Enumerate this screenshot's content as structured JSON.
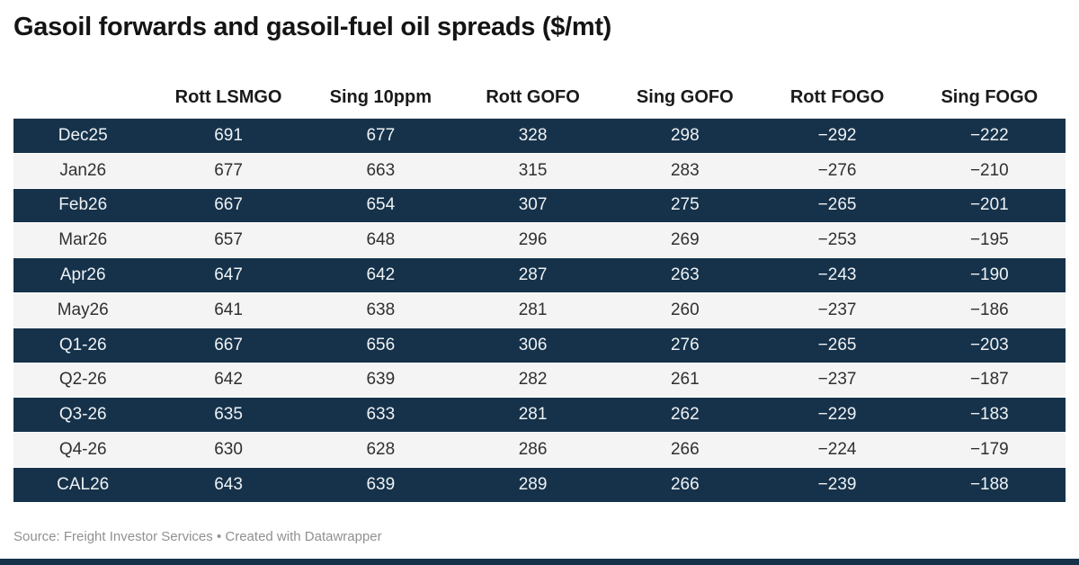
{
  "title": "Gasoil forwards and gasoil-fuel oil spreads ($/mt)",
  "table": {
    "columns": [
      "",
      "Rott LSMGO",
      "Sing 10ppm",
      "Rott GOFO",
      "Sing GOFO",
      "Rott FOGO",
      "Sing FOGO"
    ],
    "rows": [
      {
        "label": "Dec25",
        "values": [
          "691",
          "677",
          "328",
          "298",
          "−292",
          "−222"
        ]
      },
      {
        "label": "Jan26",
        "values": [
          "677",
          "663",
          "315",
          "283",
          "−276",
          "−210"
        ]
      },
      {
        "label": "Feb26",
        "values": [
          "667",
          "654",
          "307",
          "275",
          "−265",
          "−201"
        ]
      },
      {
        "label": "Mar26",
        "values": [
          "657",
          "648",
          "296",
          "269",
          "−253",
          "−195"
        ]
      },
      {
        "label": "Apr26",
        "values": [
          "647",
          "642",
          "287",
          "263",
          "−243",
          "−190"
        ]
      },
      {
        "label": "May26",
        "values": [
          "641",
          "638",
          "281",
          "260",
          "−237",
          "−186"
        ]
      },
      {
        "label": "Q1-26",
        "values": [
          "667",
          "656",
          "306",
          "276",
          "−265",
          "−203"
        ]
      },
      {
        "label": "Q2-26",
        "values": [
          "642",
          "639",
          "282",
          "261",
          "−237",
          "−187"
        ]
      },
      {
        "label": "Q3-26",
        "values": [
          "635",
          "633",
          "281",
          "262",
          "−229",
          "−183"
        ]
      },
      {
        "label": "Q4-26",
        "values": [
          "630",
          "628",
          "286",
          "266",
          "−224",
          "−179"
        ]
      },
      {
        "label": "CAL26",
        "values": [
          "643",
          "639",
          "289",
          "266",
          "−239",
          "−188"
        ]
      }
    ]
  },
  "footer": {
    "source_label": "Source:",
    "source_value": "Freight Investor Services",
    "separator": "•",
    "credit": "Created with Datawrapper"
  },
  "colors": {
    "navy": "#16324a",
    "light_row": "#f4f4f4",
    "page_bg": "#ffffff",
    "text_dark": "#303030",
    "text_light": "#eef2f5",
    "header_text": "#1a1a1a",
    "title_text": "#141414",
    "footer_text": "#919191"
  },
  "chart_data": {
    "type": "table",
    "title": "Gasoil forwards and gasoil-fuel oil spreads ($/mt)",
    "categories": [
      "Dec25",
      "Jan26",
      "Feb26",
      "Mar26",
      "Apr26",
      "May26",
      "Q1-26",
      "Q2-26",
      "Q3-26",
      "Q4-26",
      "CAL26"
    ],
    "series": [
      {
        "name": "Rott LSMGO",
        "values": [
          691,
          677,
          667,
          657,
          647,
          641,
          667,
          642,
          635,
          630,
          643
        ]
      },
      {
        "name": "Sing 10ppm",
        "values": [
          677,
          663,
          654,
          648,
          642,
          638,
          656,
          639,
          633,
          628,
          639
        ]
      },
      {
        "name": "Rott GOFO",
        "values": [
          328,
          315,
          307,
          296,
          287,
          281,
          306,
          282,
          281,
          286,
          289
        ]
      },
      {
        "name": "Sing GOFO",
        "values": [
          298,
          283,
          275,
          269,
          263,
          260,
          276,
          261,
          262,
          266,
          266
        ]
      },
      {
        "name": "Rott FOGO",
        "values": [
          -292,
          -276,
          -265,
          -253,
          -243,
          -237,
          -265,
          -237,
          -229,
          -224,
          -239
        ]
      },
      {
        "name": "Sing FOGO",
        "values": [
          -222,
          -210,
          -201,
          -195,
          -190,
          -186,
          -203,
          -187,
          -183,
          -179,
          -188
        ]
      }
    ],
    "layout": {
      "striped_rows": true,
      "stripe_color": "#16324a",
      "alt_color": "#f4f4f4",
      "alignment": "center"
    }
  }
}
